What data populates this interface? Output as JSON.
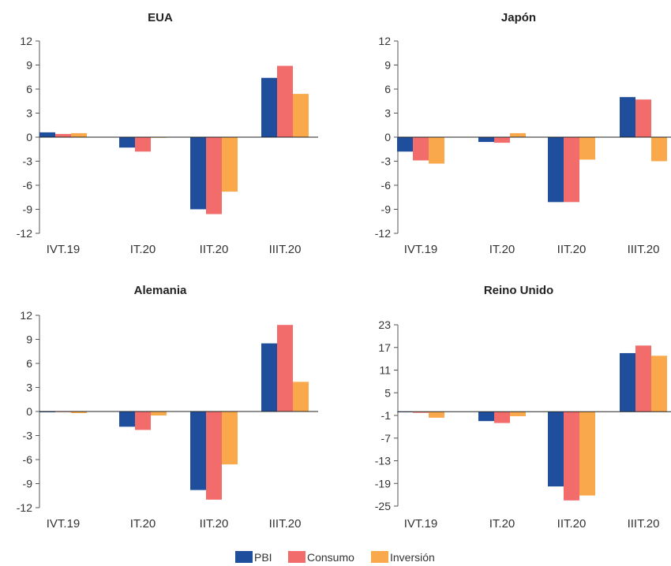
{
  "legend": [
    {
      "name": "PBI",
      "color": "#1f4e9c"
    },
    {
      "name": "Consumo",
      "color": "#f36c6c"
    },
    {
      "name": "Inversión",
      "color": "#f9a94b"
    }
  ],
  "chart_data": [
    {
      "type": "bar",
      "title": "EUA",
      "categories": [
        "IVT.19",
        "IT.20",
        "IIT.20",
        "IIIT.20"
      ],
      "ylim": [
        -12,
        12
      ],
      "yticks": [
        12,
        9,
        6,
        3,
        0,
        -3,
        -6,
        -9,
        -12
      ],
      "ytick_labels": [
        "12",
        "9",
        "6",
        "3",
        "0",
        "-3",
        "-6",
        "-9",
        "-12"
      ],
      "series": [
        {
          "name": "PBI",
          "values": [
            0.6,
            -1.3,
            -9.0,
            7.4
          ]
        },
        {
          "name": "Consumo",
          "values": [
            0.4,
            -1.8,
            -9.6,
            8.9
          ]
        },
        {
          "name": "Inversión",
          "values": [
            0.5,
            0.0,
            -6.8,
            5.4
          ]
        }
      ]
    },
    {
      "type": "bar",
      "title": "Japón",
      "categories": [
        "IVT.19",
        "IT.20",
        "IIT.20",
        "IIIT.20"
      ],
      "ylim": [
        -12,
        12
      ],
      "yticks": [
        12,
        9,
        6,
        3,
        0,
        -3,
        -6,
        -9,
        -12
      ],
      "ytick_labels": [
        "12",
        "9",
        "6",
        "3",
        "0",
        "-3",
        "-6",
        "-9",
        "-12"
      ],
      "series": [
        {
          "name": "PBI",
          "values": [
            -1.8,
            -0.6,
            -8.1,
            5.0
          ]
        },
        {
          "name": "Consumo",
          "values": [
            -2.9,
            -0.7,
            -8.1,
            4.7
          ]
        },
        {
          "name": "Inversión",
          "values": [
            -3.3,
            0.5,
            -2.8,
            -3.0
          ]
        }
      ]
    },
    {
      "type": "bar",
      "title": "Alemania",
      "categories": [
        "IVT.19",
        "IT.20",
        "IIT.20",
        "IIIT.20"
      ],
      "ylim": [
        -12,
        12
      ],
      "yticks": [
        12,
        9,
        6,
        3,
        0,
        -3,
        -6,
        -9,
        -12
      ],
      "ytick_labels": [
        "12",
        "9",
        "6",
        "3",
        "0",
        "-3",
        "-6",
        "-9",
        "-12"
      ],
      "series": [
        {
          "name": "PBI",
          "values": [
            -0.1,
            -1.9,
            -9.8,
            8.5
          ]
        },
        {
          "name": "Consumo",
          "values": [
            0.0,
            -2.3,
            -11.0,
            10.8
          ]
        },
        {
          "name": "Inversión",
          "values": [
            -0.2,
            -0.5,
            -6.6,
            3.7
          ]
        }
      ]
    },
    {
      "type": "bar",
      "title": "Reino Unido",
      "categories": [
        "IVT.19",
        "IT.20",
        "IIT.20",
        "IIIT.20"
      ],
      "ylim": [
        -25,
        23
      ],
      "yticks": [
        23,
        17,
        11,
        5,
        -1,
        -7,
        -13,
        -19,
        -25
      ],
      "ytick_labels": [
        "23",
        "17",
        "11",
        "5",
        "-1",
        "-7",
        "-13",
        "-19",
        "-25"
      ],
      "series": [
        {
          "name": "PBI",
          "values": [
            0.0,
            -2.5,
            -19.8,
            15.5
          ]
        },
        {
          "name": "Consumo",
          "values": [
            -0.3,
            -3.0,
            -23.5,
            17.5
          ]
        },
        {
          "name": "Inversión",
          "values": [
            -1.6,
            -1.2,
            -22.2,
            14.8
          ]
        }
      ]
    }
  ]
}
